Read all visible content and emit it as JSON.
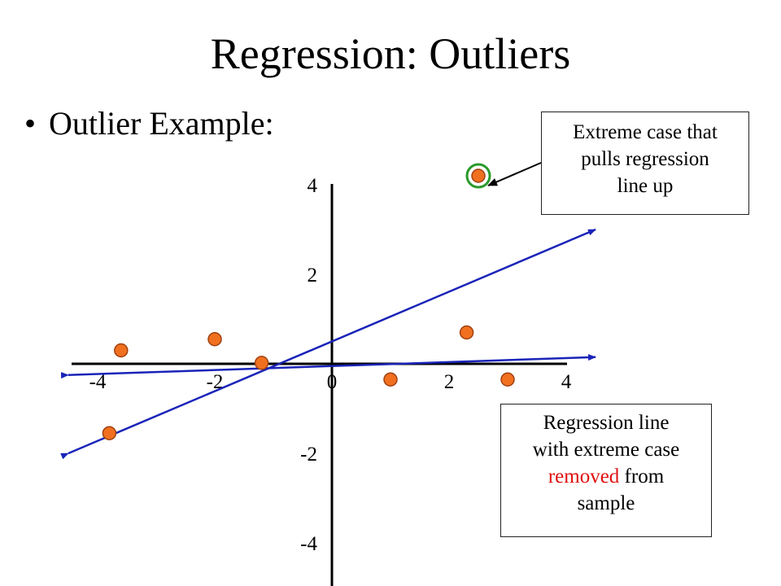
{
  "title": "Regression:  Outliers",
  "bullet": "Outlier Example:",
  "callouts": {
    "outlier_line1": "Extreme case that",
    "outlier_line2": "pulls regression",
    "outlier_line3": "line up",
    "regression_line1": "Regression line",
    "regression_line2": "with extreme case",
    "regression_removed": "removed",
    "regression_from": " from",
    "regression_line4": "sample"
  },
  "axes": {
    "x_ticks": [
      "-4",
      "-2",
      "0",
      "2",
      "4"
    ],
    "y_ticks": [
      "4",
      "2",
      "-2",
      "-4"
    ]
  },
  "chart_data": {
    "type": "scatter",
    "points": [
      {
        "x": -3.6,
        "y": 0.3
      },
      {
        "x": -2.0,
        "y": 0.55
      },
      {
        "x": -1.2,
        "y": 0.02
      },
      {
        "x": -3.8,
        "y": -1.55
      },
      {
        "x": 1.0,
        "y": -0.35
      },
      {
        "x": 2.3,
        "y": 0.7
      },
      {
        "x": 3.0,
        "y": -0.35
      },
      {
        "x": 2.5,
        "y": 4.2
      }
    ],
    "outlier_index": 7,
    "lines": [
      {
        "x1": -4.5,
        "y1": -2.0,
        "x2": 4.5,
        "y2": 3.0
      },
      {
        "x1": -4.5,
        "y1": -0.25,
        "x2": 4.5,
        "y2": 0.15
      }
    ],
    "colors": {
      "point": "#f07020",
      "point_stroke": "#a04010",
      "line": "#1a24b8",
      "highlight": "#2a9a2a"
    }
  }
}
